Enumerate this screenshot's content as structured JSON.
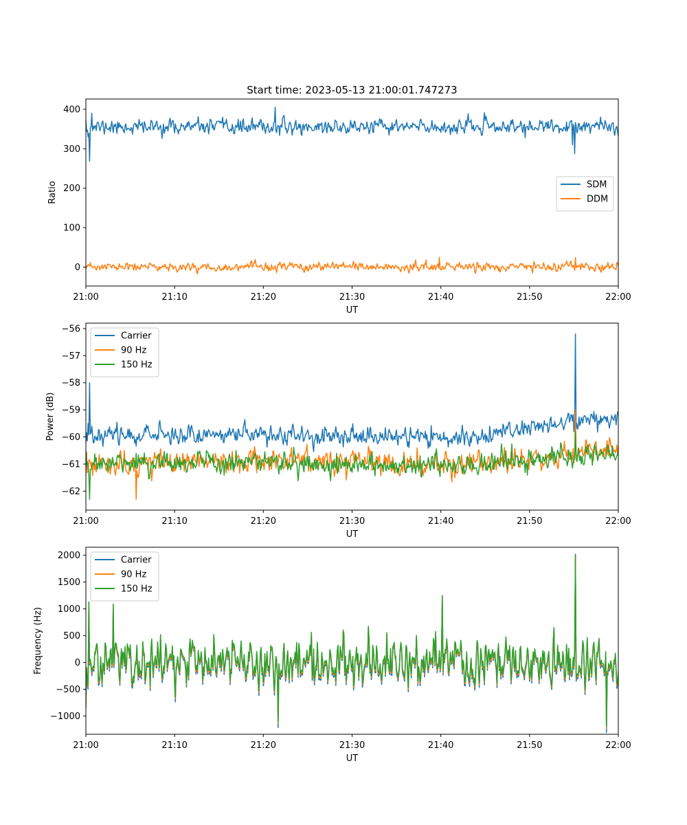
{
  "figure": {
    "title": "Start time: 2023-05-13 21:00:01.747273",
    "background": "#ffffff"
  },
  "chart_data": [
    {
      "type": "line",
      "id": "ratio",
      "title": "Start time: 2023-05-13 21:00:01.747273",
      "xlabel": "UT",
      "ylabel": "Ratio",
      "x_tick_labels": [
        "21:00",
        "21:10",
        "21:20",
        "21:30",
        "21:40",
        "21:50",
        "22:00"
      ],
      "xlim": [
        "21:00",
        "22:00"
      ],
      "ylim": [
        -48,
        426
      ],
      "y_ticks": [
        0,
        100,
        200,
        300,
        400
      ],
      "y_tick_labels": [
        "0",
        "100",
        "200",
        "300",
        "400"
      ],
      "grid": false,
      "legend": {
        "placement": "center-right",
        "entries": [
          "SDM",
          "DDM"
        ]
      },
      "series": [
        {
          "name": "SDM",
          "color": "#1f77b4",
          "base": 355,
          "noise": 15,
          "seed": 11,
          "anchors": [
            [
              "21:00",
              372
            ],
            [
              "21:00:15",
              330
            ],
            [
              "21:00:25",
              268
            ],
            [
              "21:00:40",
              390
            ],
            [
              "21:21:20",
              405
            ],
            [
              "21:54:50",
              310
            ],
            [
              "21:55:05",
              287
            ],
            [
              "21:55:20",
              340
            ]
          ]
        },
        {
          "name": "DDM",
          "color": "#ff7f0e",
          "base": 0,
          "noise": 9,
          "seed": 23,
          "anchors": [
            [
              "21:00",
              -5
            ],
            [
              "21:39:50",
              25
            ],
            [
              "21:55:10",
              24
            ]
          ]
        }
      ]
    },
    {
      "type": "line",
      "id": "power",
      "xlabel": "UT",
      "ylabel": "Power (dB)",
      "x_tick_labels": [
        "21:00",
        "21:10",
        "21:20",
        "21:30",
        "21:40",
        "21:50",
        "22:00"
      ],
      "xlim": [
        "21:00",
        "22:00"
      ],
      "ylim": [
        -62.7,
        -55.8
      ],
      "y_ticks": [
        -62,
        -61,
        -60,
        -59,
        -58,
        -57,
        -56
      ],
      "y_tick_labels": [
        "−62",
        "−61",
        "−60",
        "−59",
        "−58",
        "−57",
        "−56"
      ],
      "grid": false,
      "legend": {
        "placement": "upper-left",
        "entries": [
          "Carrier",
          "90 Hz",
          "150 Hz"
        ]
      },
      "series": [
        {
          "name": "Carrier",
          "color": "#1f77b4",
          "base_points": [
            [
              "21:00",
              -59.9
            ],
            [
              "21:20",
              -59.9
            ],
            [
              "21:30",
              -60.0
            ],
            [
              "21:45",
              -60.0
            ],
            [
              "21:50",
              -59.6
            ],
            [
              "22:00",
              -59.3
            ]
          ],
          "noise": 0.28,
          "seed": 37,
          "anchors": [
            [
              "21:00",
              -60.2
            ],
            [
              "21:00:15",
              -59.5
            ],
            [
              "21:00:25",
              -58.0
            ],
            [
              "21:00:40",
              -59.6
            ],
            [
              "21:55:00",
              -59.8
            ],
            [
              "21:55:10",
              -56.2
            ],
            [
              "21:55:20",
              -59.5
            ]
          ]
        },
        {
          "name": "90 Hz",
          "color": "#ff7f0e",
          "base_points": [
            [
              "21:00",
              -61.1
            ],
            [
              "21:20",
              -60.8
            ],
            [
              "21:40",
              -61.1
            ],
            [
              "22:00",
              -60.5
            ]
          ],
          "noise": 0.35,
          "seed": 53,
          "anchors": [
            [
              "21:00",
              -61.4
            ],
            [
              "21:05:40",
              -62.3
            ],
            [
              "21:55:10",
              -59.0
            ]
          ]
        },
        {
          "name": "150 Hz",
          "color": "#2ca02c",
          "base_points": [
            [
              "21:00",
              -61.0
            ],
            [
              "21:20",
              -60.9
            ],
            [
              "21:40",
              -61.1
            ],
            [
              "22:00",
              -60.6
            ]
          ],
          "noise": 0.33,
          "seed": 71,
          "anchors": [
            [
              "21:00",
              -60.5
            ],
            [
              "21:00:25",
              -62.3
            ],
            [
              "21:00:45",
              -61.0
            ],
            [
              "21:55:10",
              -59.8
            ]
          ]
        }
      ]
    },
    {
      "type": "line",
      "id": "frequency",
      "xlabel": "UT",
      "ylabel": "Frequency (Hz)",
      "x_tick_labels": [
        "21:00",
        "21:10",
        "21:20",
        "21:30",
        "21:40",
        "21:50",
        "22:00"
      ],
      "xlim": [
        "21:00",
        "22:00"
      ],
      "ylim": [
        -1340,
        2150
      ],
      "y_ticks": [
        -1000,
        -500,
        0,
        500,
        1000,
        1500,
        2000
      ],
      "y_tick_labels": [
        "−1000",
        "−500",
        "0",
        "500",
        "1000",
        "1500",
        "2000"
      ],
      "grid": false,
      "legend": {
        "placement": "upper-left",
        "entries": [
          "Carrier",
          "90 Hz",
          "150 Hz"
        ]
      },
      "shared_trace": {
        "base": 0,
        "noise": 360,
        "seed": 97,
        "anchors": [
          [
            "21:00",
            -750
          ],
          [
            "21:00:20",
            1130
          ],
          [
            "21:03:05",
            1090
          ],
          [
            "21:21:40",
            -1110
          ],
          [
            "21:40:10",
            1250
          ],
          [
            "21:55:10",
            2000
          ],
          [
            "21:58:40",
            -1200
          ]
        ]
      },
      "series": [
        {
          "name": "Carrier",
          "color": "#1f77b4",
          "offset": -60,
          "scale": 1.04
        },
        {
          "name": "90 Hz",
          "color": "#ff7f0e",
          "offset": -30,
          "scale": 1.0
        },
        {
          "name": "150 Hz",
          "color": "#2ca02c",
          "offset": 0,
          "scale": 1.0
        }
      ]
    }
  ]
}
